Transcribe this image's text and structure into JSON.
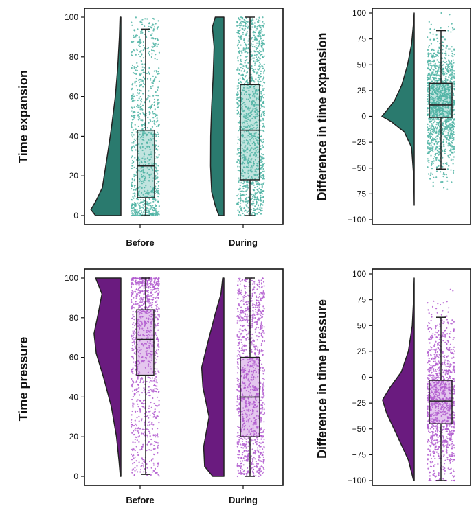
{
  "colors": {
    "teal_fill": "#2a7a6e",
    "teal_dots": "#4db3a3",
    "purple_fill": "#6a1b7f",
    "purple_dots": "#b25ccf",
    "outline": "#222222"
  },
  "chart_data": [
    {
      "type": "raincloud",
      "ylabel": "Time expansion",
      "categories": [
        "Before",
        "During"
      ],
      "ylim": [
        0,
        100
      ],
      "yticks": [
        "0",
        "20",
        "40",
        "60",
        "80",
        "100"
      ],
      "color_key": "teal",
      "box_stats": [
        {
          "category": "Before",
          "whisker_low": 0,
          "q1": 9,
          "median": 25,
          "q3": 43,
          "whisker_high": 94
        },
        {
          "category": "During",
          "whisker_low": 0,
          "q1": 18,
          "median": 43,
          "q3": 66,
          "whisker_high": 100
        }
      ]
    },
    {
      "type": "raincloud",
      "ylabel": "Difference in time expansion",
      "categories": [],
      "ylim": [
        -100,
        100
      ],
      "yticks": [
        "−100",
        "−75",
        "−50",
        "−25",
        "0",
        "25",
        "50",
        "75",
        "100"
      ],
      "color_key": "teal",
      "box_stats": [
        {
          "category": "",
          "whisker_low": -51,
          "q1": -1,
          "median": 11,
          "q3": 32,
          "whisker_high": 83
        }
      ]
    },
    {
      "type": "raincloud",
      "ylabel": "Time pressure",
      "categories": [
        "Before",
        "During"
      ],
      "ylim": [
        0,
        100
      ],
      "yticks": [
        "0",
        "20",
        "40",
        "60",
        "80",
        "100"
      ],
      "color_key": "purple",
      "box_stats": [
        {
          "category": "Before",
          "whisker_low": 1,
          "q1": 51,
          "median": 69,
          "q3": 84,
          "whisker_high": 100
        },
        {
          "category": "During",
          "whisker_low": 0,
          "q1": 20,
          "median": 40,
          "q3": 60,
          "whisker_high": 100
        }
      ]
    },
    {
      "type": "raincloud",
      "ylabel": "Difference in time pressure",
      "categories": [],
      "ylim": [
        -100,
        100
      ],
      "yticks": [
        "−100",
        "−75",
        "−50",
        "−25",
        "0",
        "25",
        "50",
        "75",
        "100"
      ],
      "color_key": "purple",
      "box_stats": [
        {
          "category": "",
          "whisker_low": -100,
          "q1": -45,
          "median": -23,
          "q3": -3,
          "whisker_high": 58
        }
      ]
    }
  ]
}
